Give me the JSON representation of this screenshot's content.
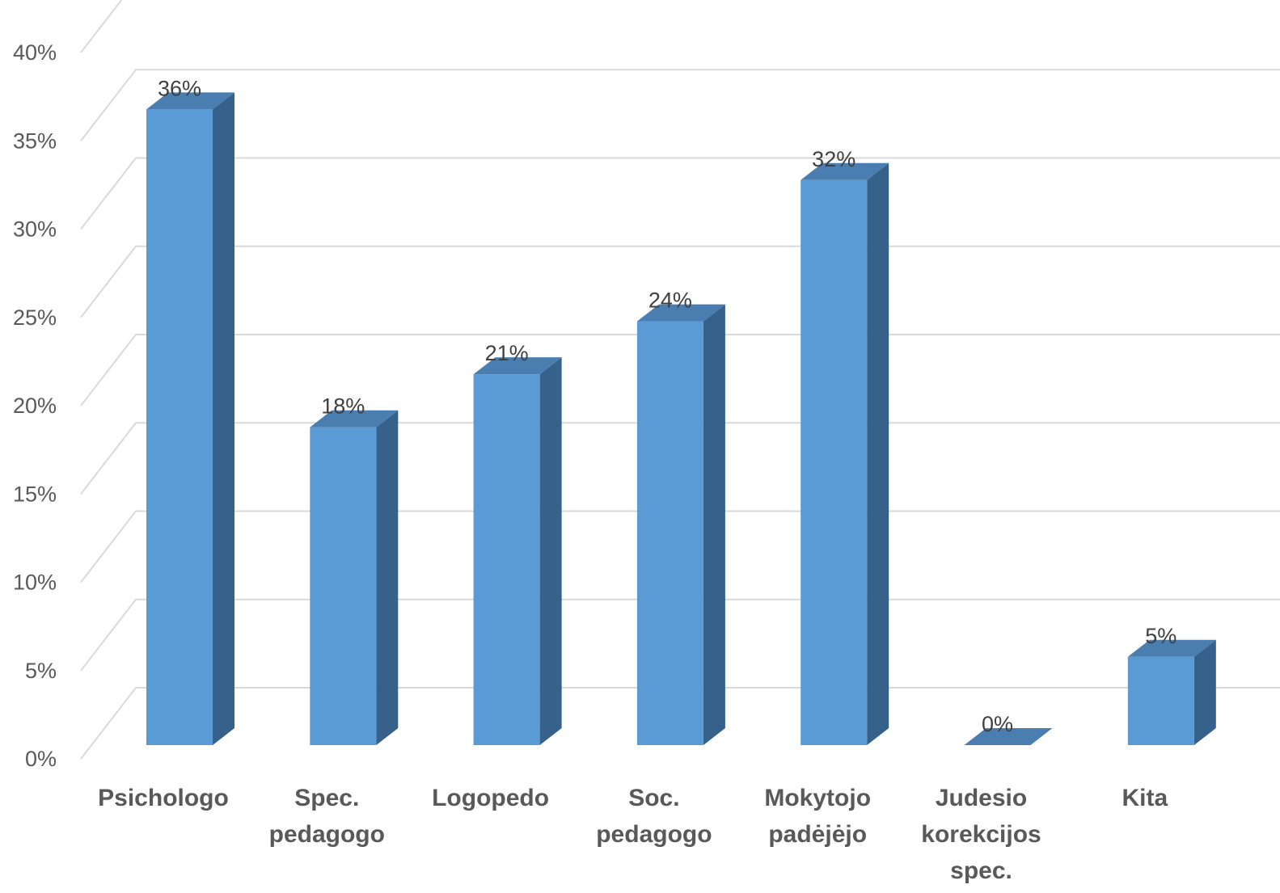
{
  "chart_data": {
    "type": "bar",
    "style": "3d-column",
    "categories": [
      [
        "Psichologo"
      ],
      [
        "Spec.",
        "pedagogo"
      ],
      [
        "Logopedo"
      ],
      [
        "Soc.",
        "pedagogo"
      ],
      [
        "Mokytojo",
        "padėjėjo"
      ],
      [
        "Judesio",
        "korekcijos",
        "spec."
      ],
      [
        "Kita"
      ]
    ],
    "values": [
      36,
      18,
      21,
      24,
      32,
      0,
      5
    ],
    "data_labels": [
      "36%",
      "18%",
      "21%",
      "24%",
      "32%",
      "0%",
      "5%"
    ],
    "yticks": [
      0,
      5,
      10,
      15,
      20,
      25,
      30,
      35,
      40
    ],
    "ytick_labels": [
      "0%",
      "5%",
      "10%",
      "15%",
      "20%",
      "25%",
      "30%",
      "35%",
      "40%"
    ],
    "ylim": [
      0,
      40
    ],
    "title": "",
    "xlabel": "",
    "ylabel": "",
    "grid": true,
    "legend": "none",
    "colors": {
      "front": "#5b9bd5",
      "side": "#36618a",
      "top": "#4a7eb0",
      "grid": "#d9d9d9"
    }
  }
}
